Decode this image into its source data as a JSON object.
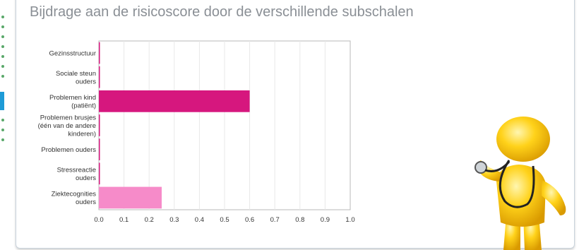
{
  "page": {
    "title": "Bijdrage aan de risicoscore door de verschillende subschalen"
  },
  "colors": {
    "bar_primary": "#d6177e",
    "bar_secondary": "#f68bc9",
    "title": "#8a8f95",
    "sidebar_active": "#1e9bd7"
  },
  "icons": {
    "mascot": "doctor-figure-with-stethoscope-icon"
  },
  "chart_data": {
    "type": "bar",
    "orientation": "horizontal",
    "categories": [
      "Gezinsstructuur",
      "Sociale steun ouders",
      "Problemen kind (patiënt)",
      "Problemen brusjes (één van de andere kinderen)",
      "Problemen ouders",
      "Stressreactie ouders",
      "Ziektecognities ouders"
    ],
    "category_lines": [
      [
        "Gezinsstructuur"
      ],
      [
        "Sociale steun",
        "ouders"
      ],
      [
        "Problemen kind",
        "(patiënt)"
      ],
      [
        "Problemen brusjes",
        "(één van de andere",
        "kinderen)"
      ],
      [
        "Problemen ouders"
      ],
      [
        "Stressreactie",
        "ouders"
      ],
      [
        "Ziektecognities",
        "ouders"
      ]
    ],
    "values": [
      0,
      0,
      0.6,
      0,
      0,
      0,
      0.25
    ],
    "bar_colors": [
      "#d6177e",
      "#d6177e",
      "#d6177e",
      "#d6177e",
      "#d6177e",
      "#d6177e",
      "#f68bc9"
    ],
    "xlim": [
      0,
      1.0
    ],
    "xticks": [
      "0.0",
      "0.1",
      "0.2",
      "0.3",
      "0.4",
      "0.5",
      "0.6",
      "0.7",
      "0.8",
      "0.9",
      "1.0"
    ],
    "grid": true,
    "legend": "none",
    "title": "",
    "xlabel": "",
    "ylabel": ""
  }
}
